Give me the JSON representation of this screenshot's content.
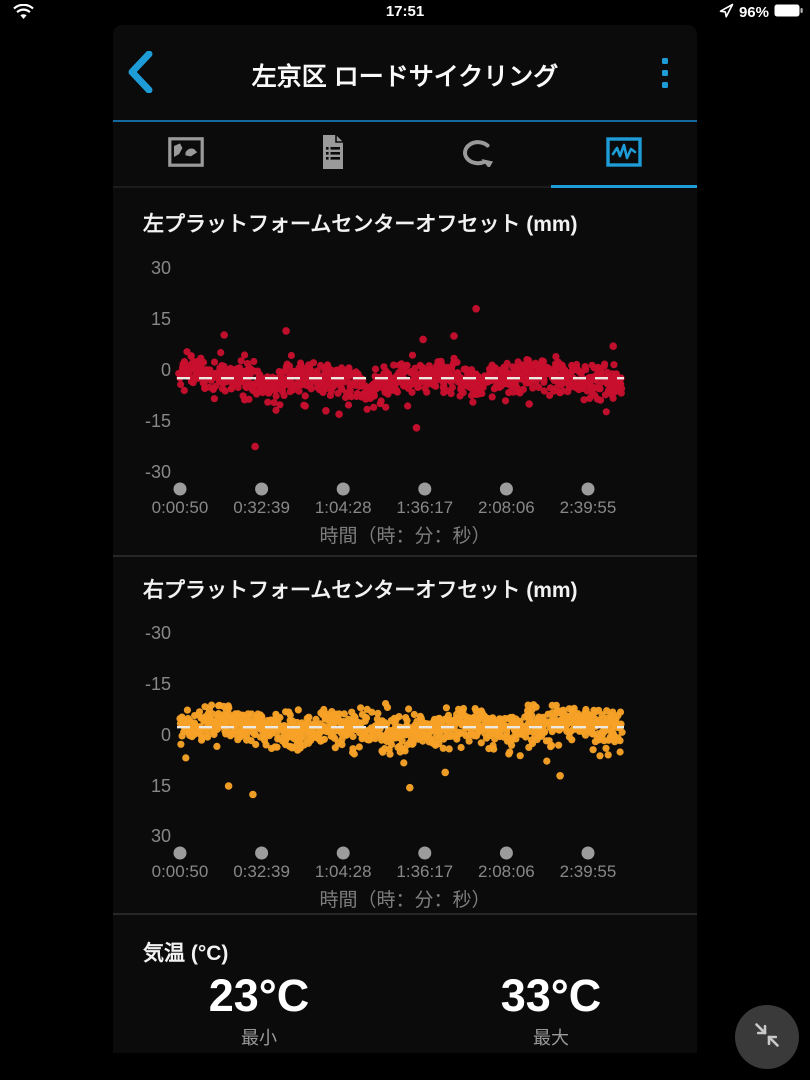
{
  "status_bar": {
    "time": "17:51",
    "battery_percent": "96%"
  },
  "header": {
    "title": "左京区 ロードサイクリング"
  },
  "tabs": [
    {
      "name": "map-photos",
      "active": false
    },
    {
      "name": "details",
      "active": false
    },
    {
      "name": "laps",
      "active": false
    },
    {
      "name": "charts",
      "active": true
    }
  ],
  "colors": {
    "accent_blue": "#1e9cd7",
    "left_chart_red": "#c8102e",
    "right_chart_orange": "#f7a228",
    "axis_text_gray": "#888888",
    "tick_dot_gray": "#9c9c9c",
    "mean_line_white": "#ece9e2",
    "app_background": "#0b0b0b"
  },
  "chart_data": [
    {
      "type": "scatter",
      "title": "左プラットフォームセンターオフセット (mm)",
      "xlabel": "時間（時：分：秒）",
      "x_tick_labels": [
        "0:00:50",
        "0:32:39",
        "1:04:28",
        "1:36:17",
        "2:08:06",
        "2:39:55"
      ],
      "x_ticks_seconds": [
        50,
        1959,
        3868,
        5777,
        7686,
        9595
      ],
      "y_tick_labels": [
        "30",
        "15",
        "0",
        "-15",
        "-30"
      ],
      "y_ticks": [
        30,
        15,
        0,
        -15,
        -30
      ],
      "ylim": [
        -30,
        30
      ],
      "y_inverted": false,
      "grid": false,
      "legend": "none",
      "series_color": "#c8102e",
      "mean_mm": -2.4,
      "mean_line_mm": -2.4,
      "spread_sd_mm": 2.7,
      "skew_prob": 0.07,
      "skew_dir": -1,
      "n_points": 950,
      "seed": 7,
      "outliers_mm": [
        {
          "t": 0.1,
          "v": 10.3
        },
        {
          "t": 0.17,
          "v": -22.5
        },
        {
          "t": 0.24,
          "v": 11.5
        },
        {
          "t": 0.33,
          "v": -12
        },
        {
          "t": 0.36,
          "v": -13
        },
        {
          "t": 0.535,
          "v": -17
        },
        {
          "t": 0.55,
          "v": 9
        },
        {
          "t": 0.62,
          "v": 10
        },
        {
          "t": 0.67,
          "v": 18
        },
        {
          "t": 0.79,
          "v": -10
        },
        {
          "t": 0.98,
          "v": 7
        }
      ]
    },
    {
      "type": "scatter",
      "title": "右プラットフォームセンターオフセット (mm)",
      "xlabel": "時間（時：分：秒）",
      "x_tick_labels": [
        "0:00:50",
        "0:32:39",
        "1:04:28",
        "1:36:17",
        "2:08:06",
        "2:39:55"
      ],
      "x_ticks_seconds": [
        50,
        1959,
        3868,
        5777,
        7686,
        9595
      ],
      "y_tick_labels": [
        "-30",
        "-15",
        "0",
        "15",
        "30"
      ],
      "y_ticks": [
        -30,
        -15,
        0,
        15,
        30
      ],
      "ylim": [
        -30,
        30
      ],
      "y_inverted": true,
      "grid": false,
      "legend": "none",
      "series_color": "#f7a228",
      "mean_mm": -2.3,
      "mean_line_mm": -2.3,
      "spread_sd_mm": 2.9,
      "skew_prob": 0.09,
      "skew_dir": 1,
      "n_points": 950,
      "seed": 21,
      "outliers_mm": [
        {
          "t": 0.11,
          "v": 15
        },
        {
          "t": 0.165,
          "v": 17.5
        },
        {
          "t": 0.52,
          "v": 15.5
        },
        {
          "t": 0.86,
          "v": 12
        },
        {
          "t": 0.6,
          "v": 11
        }
      ]
    }
  ],
  "temperature": {
    "label": "気温 (°C)",
    "min": {
      "value": "23°C",
      "caption": "最小"
    },
    "max": {
      "value": "33°C",
      "caption": "最大"
    }
  }
}
